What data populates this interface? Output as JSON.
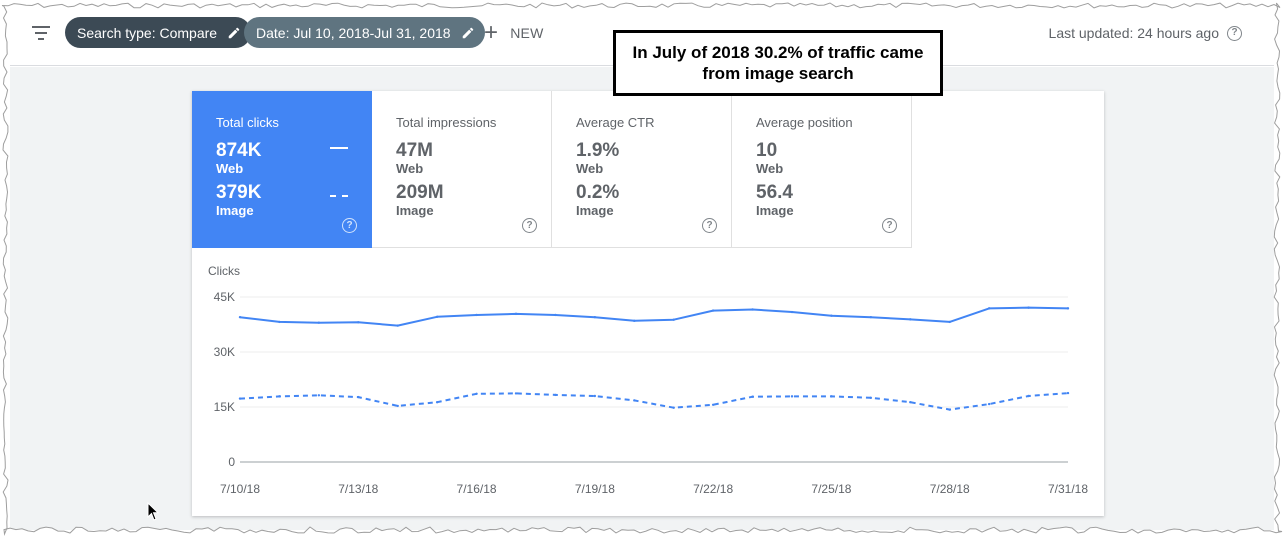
{
  "topbar": {
    "filter_icon": "filter-list-icon",
    "chip_search_type": "Search type: Compare",
    "chip_date": "Date: Jul 10, 2018-Jul 31, 2018",
    "new_label": "NEW",
    "last_updated": "Last updated: 24 hours ago"
  },
  "colors": {
    "chip_dark": "#3c4a55",
    "chip_light": "#5f7480",
    "accent": "#4285f4",
    "line": "#4285f4"
  },
  "annotation": {
    "text": "In July of 2018 30.2% of traffic came from image search"
  },
  "metrics": [
    {
      "title": "Total clicks",
      "value1": "874K",
      "label1": "Web",
      "value2": "379K",
      "label2": "Image",
      "active": true
    },
    {
      "title": "Total impressions",
      "value1": "47M",
      "label1": "Web",
      "value2": "209M",
      "label2": "Image",
      "active": false
    },
    {
      "title": "Average CTR",
      "value1": "1.9%",
      "label1": "Web",
      "value2": "0.2%",
      "label2": "Image",
      "active": false
    },
    {
      "title": "Average position",
      "value1": "10",
      "label1": "Web",
      "value2": "56.4",
      "label2": "Image",
      "active": false
    }
  ],
  "chart_data": {
    "type": "line",
    "ylabel": "Clicks",
    "ylim": [
      0,
      45000
    ],
    "yticks": [
      0,
      15000,
      30000,
      45000
    ],
    "ytick_labels": [
      "0",
      "15K",
      "30K",
      "45K"
    ],
    "xtick_labels": [
      "7/10/18",
      "7/13/18",
      "7/16/18",
      "7/19/18",
      "7/22/18",
      "7/25/18",
      "7/28/18",
      "7/31/18"
    ],
    "x": [
      "7/10/18",
      "7/11/18",
      "7/12/18",
      "7/13/18",
      "7/14/18",
      "7/15/18",
      "7/16/18",
      "7/17/18",
      "7/18/18",
      "7/19/18",
      "7/20/18",
      "7/21/18",
      "7/22/18",
      "7/23/18",
      "7/24/18",
      "7/25/18",
      "7/26/18",
      "7/27/18",
      "7/28/18",
      "7/29/18",
      "7/30/18",
      "7/31/18"
    ],
    "grid": true,
    "series": [
      {
        "values": [
          39500,
          38200,
          38000,
          38100,
          37200,
          39600,
          40100,
          40400,
          40100,
          39500,
          38500,
          38800,
          41300,
          41600,
          40900,
          39900,
          39500,
          38900,
          38200,
          41900,
          42100,
          41900
        ],
        "style": "solid"
      },
      {
        "values": [
          17300,
          17900,
          18200,
          17700,
          15300,
          16300,
          18600,
          18700,
          18300,
          18000,
          16800,
          14800,
          15600,
          17800,
          17900,
          17900,
          17500,
          16300,
          14300,
          15800,
          18000,
          18800
        ],
        "style": "dashed"
      }
    ]
  }
}
